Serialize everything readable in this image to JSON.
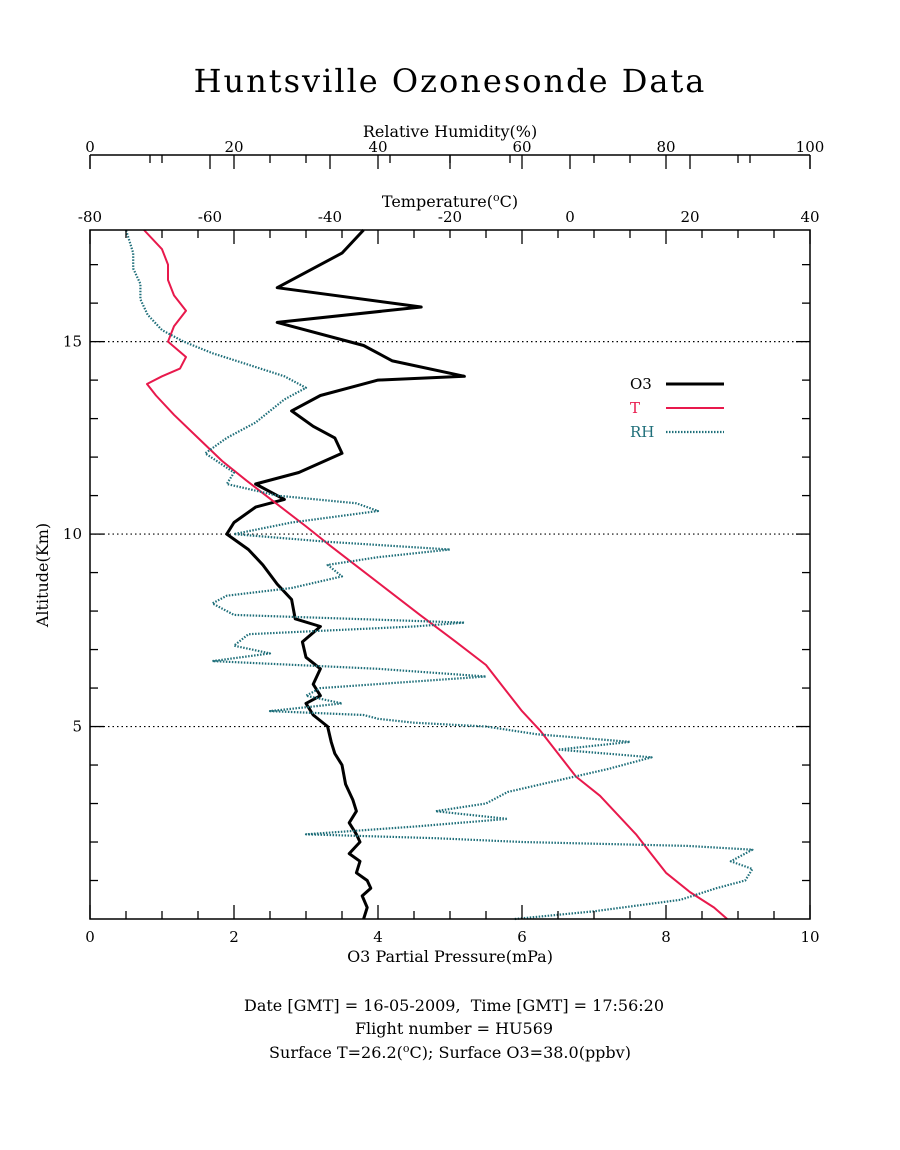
{
  "title": "Huntsville Ozonesonde Data",
  "footer": {
    "line1": "Date [GMT] = 16-05-2009,  Time [GMT] = 17:56:20",
    "line2": "Flight number = HU569",
    "line3_prefix": "Surface T=26.2(",
    "line3_unit_sup": "o",
    "line3_suffix": "C); Surface O3=38.0(ppbv)"
  },
  "chart_data": {
    "type": "line",
    "y_axis": {
      "label": "Altitude(Km)",
      "range": [
        0,
        17.9
      ],
      "ticks": [
        5,
        10,
        15
      ],
      "reference_lines": [
        5,
        10,
        15
      ]
    },
    "axes": {
      "o3": {
        "label": "O3 Partial Pressure(mPa)",
        "position": "bottom",
        "range": [
          0,
          10
        ],
        "ticks": [
          0,
          2,
          4,
          6,
          8,
          10
        ]
      },
      "temperature": {
        "label_prefix": "Temperature(",
        "label_sup": "o",
        "label_suffix": "C)",
        "position": "top-inner",
        "range": [
          -80,
          40
        ],
        "ticks": [
          -80,
          -60,
          -40,
          -20,
          0,
          20,
          40
        ]
      },
      "rh": {
        "label": "Relative Humidity(%)",
        "position": "top-outer",
        "range": [
          0,
          100
        ],
        "ticks": [
          0,
          20,
          40,
          60,
          80,
          100
        ]
      }
    },
    "legend": {
      "placement": "top-right",
      "entries": [
        {
          "name": "O3",
          "color": "#000000"
        },
        {
          "name": "T",
          "color": "#e8194c"
        },
        {
          "name": "RH",
          "color": "#1f6f7a"
        }
      ]
    },
    "series": [
      {
        "name": "O3",
        "axis": "o3",
        "color": "#000000",
        "points": [
          [
            3.8,
            0.0
          ],
          [
            3.85,
            0.3
          ],
          [
            3.78,
            0.6
          ],
          [
            3.9,
            0.8
          ],
          [
            3.85,
            1.0
          ],
          [
            3.7,
            1.2
          ],
          [
            3.75,
            1.5
          ],
          [
            3.6,
            1.7
          ],
          [
            3.75,
            2.0
          ],
          [
            3.7,
            2.2
          ],
          [
            3.6,
            2.5
          ],
          [
            3.7,
            2.8
          ],
          [
            3.65,
            3.1
          ],
          [
            3.55,
            3.5
          ],
          [
            3.5,
            4.0
          ],
          [
            3.4,
            4.3
          ],
          [
            3.35,
            4.6
          ],
          [
            3.3,
            5.0
          ],
          [
            3.1,
            5.3
          ],
          [
            3.0,
            5.6
          ],
          [
            3.2,
            5.8
          ],
          [
            3.1,
            6.1
          ],
          [
            3.2,
            6.5
          ],
          [
            3.0,
            6.8
          ],
          [
            2.95,
            7.2
          ],
          [
            3.2,
            7.6
          ],
          [
            2.85,
            7.8
          ],
          [
            2.8,
            8.3
          ],
          [
            2.6,
            8.7
          ],
          [
            2.4,
            9.2
          ],
          [
            2.2,
            9.6
          ],
          [
            1.9,
            10.0
          ],
          [
            2.0,
            10.3
          ],
          [
            2.3,
            10.7
          ],
          [
            2.7,
            10.9
          ],
          [
            2.3,
            11.3
          ],
          [
            2.9,
            11.6
          ],
          [
            3.5,
            12.1
          ],
          [
            3.4,
            12.5
          ],
          [
            3.1,
            12.8
          ],
          [
            2.8,
            13.2
          ],
          [
            3.2,
            13.6
          ],
          [
            4.0,
            14.0
          ],
          [
            5.2,
            14.1
          ],
          [
            4.2,
            14.5
          ],
          [
            3.8,
            14.9
          ],
          [
            2.6,
            15.5
          ],
          [
            4.6,
            15.9
          ],
          [
            2.6,
            16.4
          ],
          [
            3.0,
            16.8
          ],
          [
            3.5,
            17.3
          ],
          [
            3.8,
            17.9
          ]
        ]
      },
      {
        "name": "T",
        "axis": "temperature",
        "color": "#e8194c",
        "points": [
          [
            26.2,
            0.0
          ],
          [
            24,
            0.3
          ],
          [
            20,
            0.7
          ],
          [
            16,
            1.2
          ],
          [
            13.5,
            1.7
          ],
          [
            11,
            2.2
          ],
          [
            8,
            2.7
          ],
          [
            5,
            3.2
          ],
          [
            1,
            3.7
          ],
          [
            -2,
            4.3
          ],
          [
            -5,
            4.9
          ],
          [
            -8,
            5.4
          ],
          [
            -11,
            6.0
          ],
          [
            -14,
            6.6
          ],
          [
            -19,
            7.2
          ],
          [
            -25,
            7.9
          ],
          [
            -30,
            8.5
          ],
          [
            -35,
            9.1
          ],
          [
            -40,
            9.7
          ],
          [
            -44,
            10.2
          ],
          [
            -49,
            10.8
          ],
          [
            -54,
            11.4
          ],
          [
            -58,
            11.9
          ],
          [
            -62,
            12.5
          ],
          [
            -66,
            13.1
          ],
          [
            -69,
            13.6
          ],
          [
            -70.5,
            13.9
          ],
          [
            -68,
            14.1
          ],
          [
            -65,
            14.3
          ],
          [
            -64,
            14.6
          ],
          [
            -67,
            15.0
          ],
          [
            -66,
            15.4
          ],
          [
            -64,
            15.8
          ],
          [
            -66,
            16.2
          ],
          [
            -67,
            16.6
          ],
          [
            -67,
            17.0
          ],
          [
            -68,
            17.4
          ],
          [
            -71,
            17.9
          ]
        ]
      },
      {
        "name": "RH",
        "axis": "rh",
        "color": "#1f6f7a",
        "points": [
          [
            59,
            0.0
          ],
          [
            70,
            0.2
          ],
          [
            82,
            0.5
          ],
          [
            87,
            0.8
          ],
          [
            91,
            1.0
          ],
          [
            92,
            1.3
          ],
          [
            89,
            1.5
          ],
          [
            92,
            1.8
          ],
          [
            83,
            1.9
          ],
          [
            60,
            2.0
          ],
          [
            48,
            2.1
          ],
          [
            30,
            2.2
          ],
          [
            45,
            2.4
          ],
          [
            58,
            2.6
          ],
          [
            48,
            2.8
          ],
          [
            55,
            3.0
          ],
          [
            58,
            3.3
          ],
          [
            65,
            3.6
          ],
          [
            72,
            3.9
          ],
          [
            78,
            4.2
          ],
          [
            65,
            4.4
          ],
          [
            75,
            4.6
          ],
          [
            62,
            4.8
          ],
          [
            55,
            5.0
          ],
          [
            45,
            5.1
          ],
          [
            40,
            5.2
          ],
          [
            38,
            5.3
          ],
          [
            25,
            5.4
          ],
          [
            35,
            5.6
          ],
          [
            30,
            5.8
          ],
          [
            32,
            6.0
          ],
          [
            55,
            6.3
          ],
          [
            40,
            6.5
          ],
          [
            17,
            6.7
          ],
          [
            25,
            6.9
          ],
          [
            20,
            7.1
          ],
          [
            22,
            7.4
          ],
          [
            45,
            7.6
          ],
          [
            52,
            7.7
          ],
          [
            20,
            7.9
          ],
          [
            17,
            8.2
          ],
          [
            19,
            8.4
          ],
          [
            28,
            8.6
          ],
          [
            35,
            8.9
          ],
          [
            33,
            9.2
          ],
          [
            40,
            9.4
          ],
          [
            50,
            9.6
          ],
          [
            33,
            9.8
          ],
          [
            20,
            10.0
          ],
          [
            28,
            10.3
          ],
          [
            40,
            10.6
          ],
          [
            37,
            10.8
          ],
          [
            26,
            11.0
          ],
          [
            19,
            11.3
          ],
          [
            20,
            11.6
          ],
          [
            16,
            12.1
          ],
          [
            19,
            12.5
          ],
          [
            23,
            12.9
          ],
          [
            25,
            13.2
          ],
          [
            27,
            13.5
          ],
          [
            30,
            13.8
          ],
          [
            27,
            14.1
          ],
          [
            22,
            14.4
          ],
          [
            17,
            14.7
          ],
          [
            13,
            15.0
          ],
          [
            10,
            15.3
          ],
          [
            8,
            15.7
          ],
          [
            7,
            16.1
          ],
          [
            7,
            16.5
          ],
          [
            6,
            16.9
          ],
          [
            6,
            17.3
          ],
          [
            5,
            17.9
          ]
        ]
      }
    ]
  }
}
